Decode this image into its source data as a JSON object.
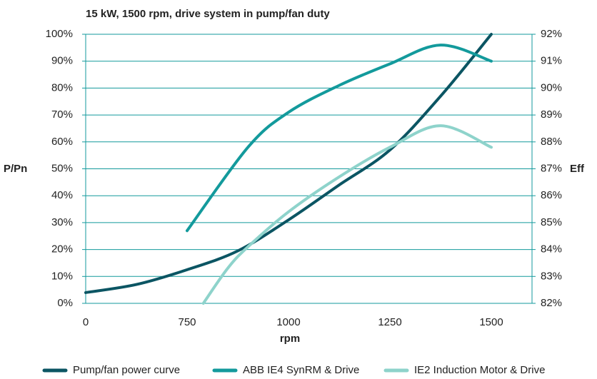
{
  "chart_data": {
    "type": "line",
    "title": "15 kW, 1500 rpm, drive system in pump/fan duty",
    "xlabel": "rpm",
    "ylabel": "P/Pn",
    "y2label": "Eff",
    "xlim": [
      0,
      1600
    ],
    "xticks": [
      0,
      750,
      1000,
      1250,
      1500
    ],
    "ylim": [
      0,
      100
    ],
    "yticks": [
      {
        "value": 0,
        "label": "0%"
      },
      {
        "value": 10,
        "label": "10%"
      },
      {
        "value": 20,
        "label": "20%"
      },
      {
        "value": 30,
        "label": "30%"
      },
      {
        "value": 40,
        "label": "40%"
      },
      {
        "value": 50,
        "label": "50%"
      },
      {
        "value": 60,
        "label": "60%"
      },
      {
        "value": 70,
        "label": "70%"
      },
      {
        "value": 80,
        "label": "80%"
      },
      {
        "value": 90,
        "label": "90%"
      },
      {
        "value": 100,
        "label": "100%"
      }
    ],
    "y2lim": [
      82,
      92
    ],
    "y2ticks": [
      {
        "value": 82,
        "label": "82%"
      },
      {
        "value": 83,
        "label": "83%"
      },
      {
        "value": 84,
        "label": "84%"
      },
      {
        "value": 85,
        "label": "85%"
      },
      {
        "value": 86,
        "label": "86%"
      },
      {
        "value": 87,
        "label": "87%"
      },
      {
        "value": 88,
        "label": "88%"
      },
      {
        "value": 89,
        "label": "89%"
      },
      {
        "value": 90,
        "label": "90%"
      },
      {
        "value": 91,
        "label": "91%"
      },
      {
        "value": 92,
        "label": "92%"
      }
    ],
    "grid": true,
    "legend": "bottom",
    "series": [
      {
        "name": "Pump/fan power curve",
        "color": "#0b5563",
        "x": [
          0,
          375,
          750,
          875,
          1000,
          1125,
          1250,
          1375,
          1500
        ],
        "values": [
          4,
          7,
          12.5,
          19.5,
          31,
          44,
          57,
          77,
          100
        ]
      },
      {
        "name": "ABB IE4 SynRM & Drive",
        "color": "#139a9c",
        "axis": "y2",
        "x": [
          750,
          900,
          1000,
          1125,
          1250,
          1375,
          1500
        ],
        "values": [
          84.7,
          87.8,
          89.1,
          90.1,
          90.9,
          91.6,
          91.0
        ]
      },
      {
        "name": "IE2 Induction Motor & Drive",
        "color": "#8ed3cb",
        "axis": "y2",
        "x": [
          790,
          850,
          900,
          1000,
          1125,
          1250,
          1375,
          1500
        ],
        "values": [
          82.0,
          83.3,
          84.1,
          85.4,
          86.7,
          87.8,
          88.6,
          87.8
        ]
      }
    ]
  }
}
